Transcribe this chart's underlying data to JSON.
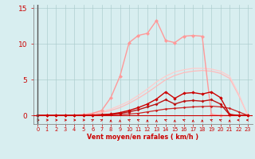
{
  "xlabel": "Vent moyen/en rafales ( km/h )",
  "x": [
    0,
    1,
    2,
    3,
    4,
    5,
    6,
    7,
    8,
    9,
    10,
    11,
    12,
    13,
    14,
    15,
    16,
    17,
    18,
    19,
    20,
    21,
    22,
    23
  ],
  "series": [
    {
      "name": "light_pink_no_marker_1",
      "color": "#ffbbbb",
      "lw": 0.9,
      "marker": false,
      "values": [
        0,
        0,
        0,
        0,
        0.05,
        0.1,
        0.2,
        0.4,
        0.7,
        1.1,
        1.7,
        2.4,
        3.2,
        4.1,
        5.0,
        5.6,
        6.0,
        6.2,
        6.3,
        6.2,
        5.9,
        5.2,
        2.8,
        0
      ]
    },
    {
      "name": "light_pink_no_marker_2",
      "color": "#ffcccc",
      "lw": 0.9,
      "marker": false,
      "values": [
        0,
        0,
        0,
        0,
        0.08,
        0.15,
        0.3,
        0.55,
        0.9,
        1.4,
        2.0,
        2.8,
        3.7,
        4.7,
        5.5,
        6.1,
        6.4,
        6.6,
        6.6,
        6.5,
        6.2,
        5.5,
        3.0,
        0
      ]
    },
    {
      "name": "pink_with_markers",
      "color": "#ff9999",
      "lw": 1.0,
      "marker": true,
      "markersize": 2.5,
      "values": [
        0,
        0,
        0,
        0,
        0.05,
        0.1,
        0.3,
        0.7,
        2.5,
        5.5,
        10.2,
        11.2,
        11.5,
        13.3,
        10.5,
        10.2,
        11.1,
        11.2,
        11.1,
        0.15,
        0,
        0,
        0,
        0
      ]
    },
    {
      "name": "dark_red_low_flat",
      "color": "#cc2222",
      "lw": 0.9,
      "marker": true,
      "markersize": 1.8,
      "values": [
        0,
        0,
        0,
        0,
        0,
        0,
        0,
        0.05,
        0.1,
        0.15,
        0.2,
        0.3,
        0.5,
        0.7,
        0.9,
        1.0,
        1.1,
        1.2,
        1.25,
        1.3,
        1.2,
        1.0,
        0.5,
        0
      ]
    },
    {
      "name": "dark_red_mid",
      "color": "#bb1111",
      "lw": 1.0,
      "marker": true,
      "markersize": 2.0,
      "values": [
        0,
        0,
        0,
        0,
        0,
        0,
        0.05,
        0.1,
        0.15,
        0.3,
        0.5,
        0.8,
        1.2,
        1.6,
        2.2,
        1.6,
        2.0,
        2.1,
        2.0,
        2.2,
        1.6,
        0.1,
        0,
        0
      ]
    },
    {
      "name": "dark_red_high",
      "color": "#cc0000",
      "lw": 1.0,
      "marker": true,
      "markersize": 2.2,
      "values": [
        0,
        0,
        0,
        0,
        0,
        0,
        0.05,
        0.1,
        0.2,
        0.4,
        0.7,
        1.1,
        1.6,
        2.3,
        3.3,
        2.4,
        3.1,
        3.2,
        3.0,
        3.3,
        2.5,
        0.15,
        0,
        0
      ]
    }
  ],
  "ylim": [
    -1.2,
    15.5
  ],
  "xlim": [
    -0.5,
    23.5
  ],
  "yticks": [
    0,
    5,
    10,
    15
  ],
  "bg_color": "#d8eef0",
  "grid_color": "#aacccc",
  "tick_color": "#cc0000",
  "label_color": "#cc0000",
  "arrow_directions": [
    0,
    0,
    0,
    0,
    0,
    0,
    45,
    45,
    90,
    90,
    135,
    135,
    90,
    90,
    135,
    90,
    135,
    90,
    90,
    135,
    135,
    90,
    180,
    180
  ]
}
